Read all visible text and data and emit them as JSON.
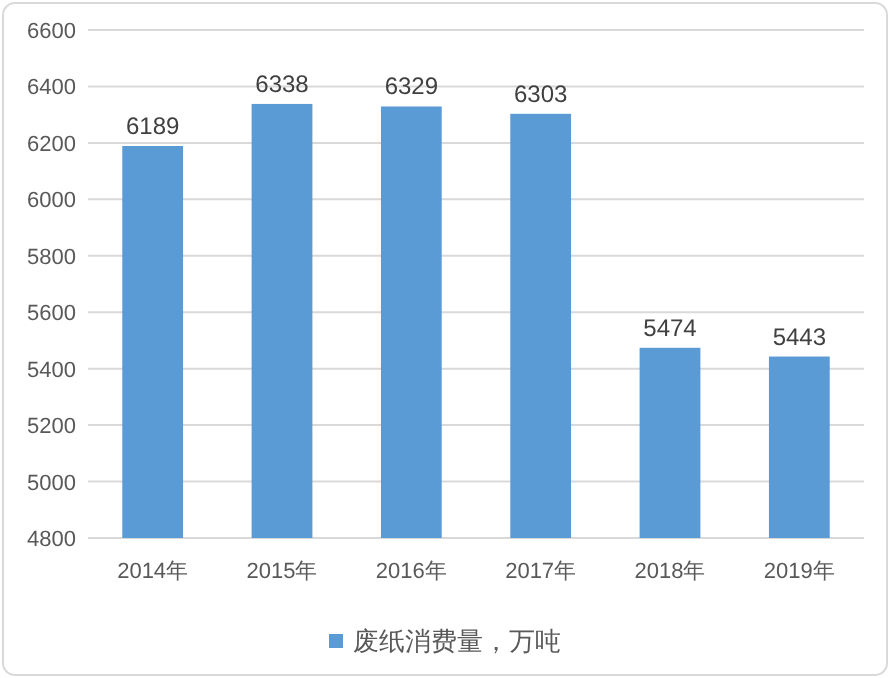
{
  "chart_data": {
    "type": "bar",
    "categories": [
      "2014年",
      "2015年",
      "2016年",
      "2017年",
      "2018年",
      "2019年"
    ],
    "series": [
      {
        "name": "废纸消费量，万吨",
        "color": "#5b9bd5",
        "values": [
          6189,
          6338,
          6329,
          6303,
          5474,
          5443
        ]
      }
    ],
    "ylim": [
      4800,
      6600
    ],
    "yticks": [
      4800,
      5000,
      5200,
      5400,
      5600,
      5800,
      6000,
      6200,
      6400,
      6600
    ],
    "grid": "y",
    "legend": "bottom",
    "data_labels": true
  }
}
